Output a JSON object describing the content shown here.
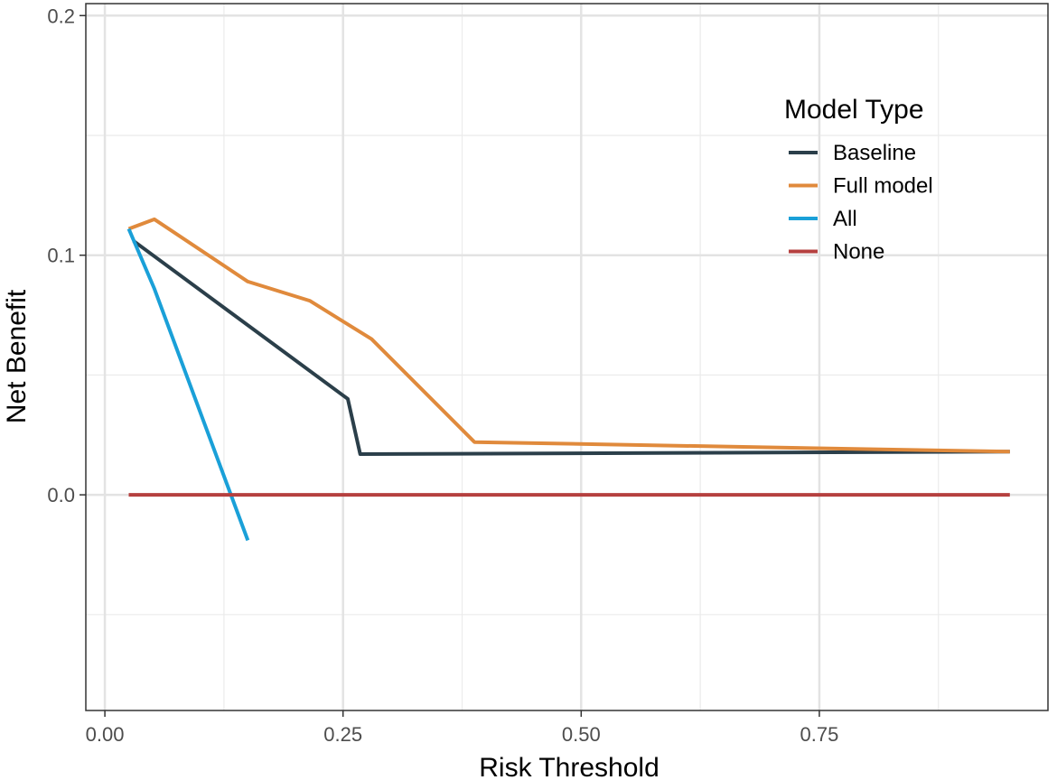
{
  "chart_data": {
    "type": "line",
    "title": "",
    "xlabel": "Risk Threshold",
    "ylabel": "Net Benefit",
    "xlim": [
      -0.02,
      0.99
    ],
    "ylim": [
      -0.09,
      0.205
    ],
    "x_ticks": [
      0.0,
      0.25,
      0.5,
      0.75
    ],
    "x_tick_labels": [
      "0.00",
      "0.25",
      "0.50",
      "0.75"
    ],
    "y_ticks": [
      0.0,
      0.1,
      0.2
    ],
    "y_tick_labels": [
      "0.0",
      "0.1",
      "0.2"
    ],
    "x_minor_grid": [
      0.125,
      0.375,
      0.625,
      0.875
    ],
    "y_minor_grid": [
      -0.05,
      0.05,
      0.15
    ],
    "grid": true,
    "legend": {
      "title": "Model Type",
      "placement": "top-right inside"
    },
    "series": [
      {
        "name": "Baseline",
        "color": "#2b3f4a",
        "x": [
          0.03,
          0.255,
          0.268,
          0.95
        ],
        "y": [
          0.106,
          0.04,
          0.017,
          0.018
        ]
      },
      {
        "name": "Full model",
        "color": "#e08a3c",
        "x": [
          0.025,
          0.052,
          0.15,
          0.215,
          0.28,
          0.388,
          0.95
        ],
        "y": [
          0.111,
          0.115,
          0.089,
          0.081,
          0.065,
          0.022,
          0.018
        ]
      },
      {
        "name": "All",
        "color": "#1aa0d8",
        "x": [
          0.025,
          0.052,
          0.15
        ],
        "y": [
          0.111,
          0.086,
          -0.019
        ]
      },
      {
        "name": "None",
        "color": "#b5403f",
        "x": [
          0.025,
          0.95
        ],
        "y": [
          0.0,
          0.0
        ]
      }
    ]
  }
}
